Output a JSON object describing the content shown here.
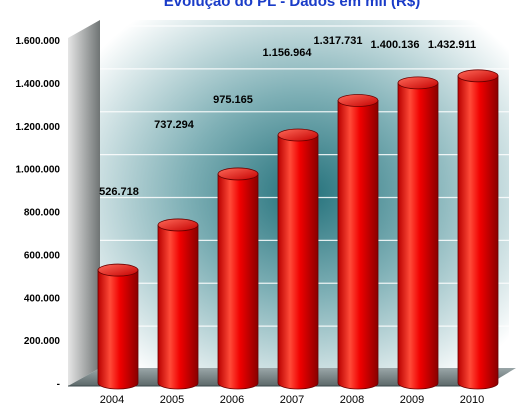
{
  "chart_data": {
    "type": "bar",
    "title": "Evolução do PL - Dados em mil (R$)",
    "xlabel": "",
    "ylabel": "",
    "categories": [
      "2004",
      "2005",
      "2006",
      "2007",
      "2008",
      "2009",
      "2010"
    ],
    "values": [
      526718,
      737294,
      975165,
      1156964,
      1317731,
      1400136,
      1432911
    ],
    "data_labels": [
      "526.718",
      "737.294",
      "975.165",
      "1.156.964",
      "1.317.731",
      "1.400.136",
      "1.432.911"
    ],
    "yticks": [
      0,
      200000,
      400000,
      600000,
      800000,
      1000000,
      1200000,
      1400000,
      1600000
    ],
    "ytick_labels": [
      "-",
      "200.000",
      "400.000",
      "600.000",
      "800.000",
      "1.000.000",
      "1.200.000",
      "1.400.000",
      "1.600.000"
    ],
    "ylim": [
      0,
      1600000
    ],
    "grid": true,
    "bar_style": "3d-cylinder",
    "colors": {
      "bar": "#e00000",
      "bar_highlight": "#ff5a4a",
      "bar_shadow": "#7a0000",
      "title": "#1a3cc8",
      "wall": "#2d7d86",
      "floor": "#8a9a9c"
    }
  }
}
